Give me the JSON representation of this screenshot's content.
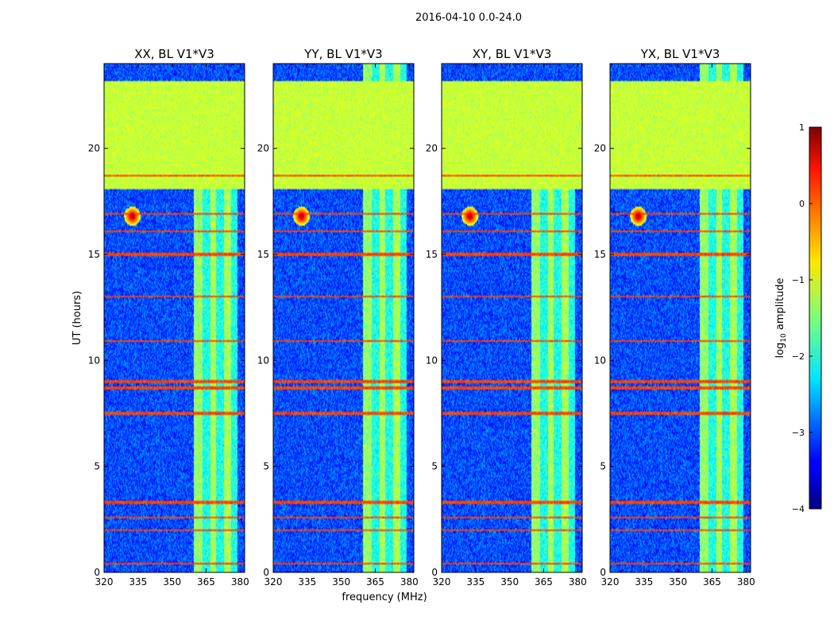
{
  "chart_data": {
    "type": "heatmap",
    "title": "2016-04-10 0.0-24.0",
    "xlabel": "frequency (MHz)",
    "ylabel": "UT (hours)",
    "xlim": [
      320,
      382
    ],
    "ylim": [
      0,
      24
    ],
    "xticks": [
      320,
      335,
      350,
      365,
      380
    ],
    "xtick_labels": [
      "320",
      "335",
      "350",
      "365",
      "380"
    ],
    "yticks": [
      0,
      5,
      10,
      15,
      20
    ],
    "ytick_labels": [
      "0",
      "5",
      "10",
      "15",
      "20"
    ],
    "colorbar": {
      "label": "log10 amplitude",
      "label_base": "log",
      "label_sub": "10",
      "label_rest": " amplitude",
      "colormap": "jet",
      "range": [
        -4,
        1
      ],
      "ticks": [
        1,
        0,
        -1,
        -2,
        -3,
        -4
      ],
      "tick_labels": [
        "1",
        "0",
        "−1",
        "−2",
        "−3",
        "−4"
      ]
    },
    "panels": [
      {
        "title": "XX, BL V1*V3"
      },
      {
        "title": "YY, BL V1*V3"
      },
      {
        "title": "XY, BL V1*V3"
      },
      {
        "title": "YX, BL V1*V3"
      }
    ],
    "features": {
      "background_level": -3.0,
      "rfi_band_mhz": [
        {
          "range": [
            359.5,
            363.5
          ],
          "level": -1.4
        },
        {
          "range": [
            363.5,
            367.0
          ],
          "level": -2.0
        },
        {
          "range": [
            367.0,
            369.5
          ],
          "level": -1.3
        },
        {
          "range": [
            369.5,
            373.0
          ],
          "level": -2.0
        },
        {
          "range": [
            373.0,
            376.0
          ],
          "level": -1.3
        },
        {
          "range": [
            376.0,
            379.0
          ],
          "level": -2.0
        }
      ],
      "saturated_hours": [
        18.1,
        23.2
      ],
      "saturated_level": -1.15,
      "strong_lines_hours": [
        0.4,
        2.0,
        2.6,
        3.3,
        7.5,
        8.7,
        9.0,
        10.9,
        13.0,
        15.0,
        16.1,
        16.9,
        18.7
      ],
      "strong_line_level": 0.05,
      "point_source": {
        "freq_mhz": 332.5,
        "hour": 16.8,
        "level": 1.0
      }
    }
  }
}
